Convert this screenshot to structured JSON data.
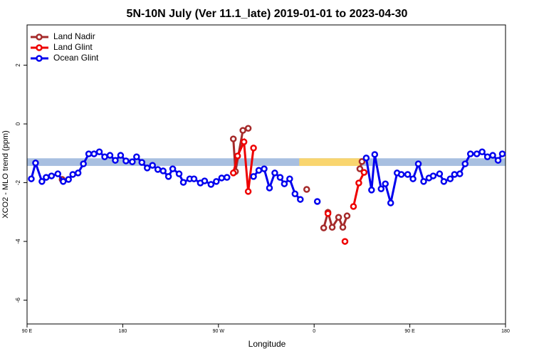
{
  "chart_data": {
    "type": "line",
    "title": "5N-10N July (Ver 11.1_late)   2019-01-01 to 2023-04-30",
    "x_label": "Longitude",
    "y_label": "XCO2 - MLO trend (ppm)",
    "xlim": [
      90,
      540
    ],
    "ylim": [
      -6.81,
      3.37
    ],
    "xticks": [
      {
        "value": 90,
        "label": "90 E"
      },
      {
        "value": 180,
        "label": "180"
      },
      {
        "value": 270,
        "label": "90 W"
      },
      {
        "value": 360,
        "label": "0"
      },
      {
        "value": 450,
        "label": "90 E"
      },
      {
        "value": 540,
        "label": "180"
      }
    ],
    "yticks": [
      -6,
      -4,
      -2,
      0,
      2
    ],
    "legend": "top-left",
    "band": {
      "ylim": [
        -1.43,
        -1.17
      ],
      "color": "#a8bfe0"
    },
    "highlight": {
      "xlim": [
        346,
        405
      ],
      "ylim": [
        -1.43,
        -1.17
      ],
      "color": "#f9d56e"
    },
    "series": [
      {
        "name": "Land Nadir",
        "color": "#a52a2a",
        "x": [
          123,
          null,
          284,
          286,
          293,
          298,
          null,
          353,
          null,
          369,
          373,
          377,
          383,
          387,
          391,
          null,
          403,
          405
        ],
        "values": [
          -1.89,
          null,
          -0.51,
          -1.62,
          -0.22,
          -0.15,
          null,
          -2.23,
          null,
          -3.54,
          -3.01,
          -3.52,
          -3.18,
          -3.52,
          -3.13,
          null,
          -1.53,
          -1.28
        ]
      },
      {
        "name": "Land Glint",
        "color": "#ee0000",
        "x": [
          284,
          288,
          294,
          298,
          303,
          null,
          373,
          null,
          389,
          null,
          397,
          402,
          407
        ],
        "values": [
          -1.67,
          -1.09,
          -0.61,
          -2.3,
          -0.82,
          null,
          -3.05,
          null,
          -4.0,
          null,
          -2.81,
          -2.01,
          -1.65
        ]
      },
      {
        "name": "Ocean Glint",
        "color": "#0000ee",
        "x": [
          94,
          98,
          104,
          108,
          113,
          119,
          124,
          129,
          133,
          138,
          143,
          148,
          153,
          158,
          163,
          168,
          173,
          178,
          183,
          189,
          193,
          198,
          203,
          208,
          213,
          218,
          223,
          227,
          233,
          237,
          243,
          247,
          253,
          257,
          263,
          268,
          273,
          278,
          null,
          303,
          308,
          313,
          318,
          323,
          328,
          332,
          337,
          342,
          347,
          null,
          363,
          null,
          409,
          414,
          417,
          423,
          427,
          432,
          438,
          442,
          448,
          453,
          458,
          463,
          468,
          472,
          478,
          482,
          488,
          492,
          497,
          502,
          507,
          513,
          518,
          523,
          528,
          533,
          537
        ],
        "values": [
          -1.87,
          -1.33,
          -1.96,
          -1.82,
          -1.77,
          -1.7,
          -1.96,
          -1.89,
          -1.72,
          -1.67,
          -1.36,
          -1.02,
          -1.02,
          -0.95,
          -1.12,
          -1.07,
          -1.24,
          -1.07,
          -1.26,
          -1.29,
          -1.12,
          -1.31,
          -1.5,
          -1.41,
          -1.55,
          -1.6,
          -1.79,
          -1.53,
          -1.7,
          -1.99,
          -1.87,
          -1.87,
          -2.01,
          -1.94,
          -2.06,
          -1.96,
          -1.84,
          -1.82,
          null,
          -1.79,
          -1.58,
          -1.53,
          -2.18,
          -1.67,
          -1.82,
          -2.04,
          -1.87,
          -2.38,
          -2.57,
          null,
          -2.64,
          null,
          -1.16,
          -2.25,
          -1.04,
          -2.21,
          -2.04,
          -2.69,
          -1.67,
          -1.72,
          -1.72,
          -1.87,
          -1.36,
          -1.96,
          -1.84,
          -1.77,
          -1.7,
          -1.96,
          -1.87,
          -1.72,
          -1.7,
          -1.36,
          -1.02,
          -1.02,
          -0.95,
          -1.12,
          -1.07,
          -1.24,
          -1.02
        ]
      }
    ]
  }
}
